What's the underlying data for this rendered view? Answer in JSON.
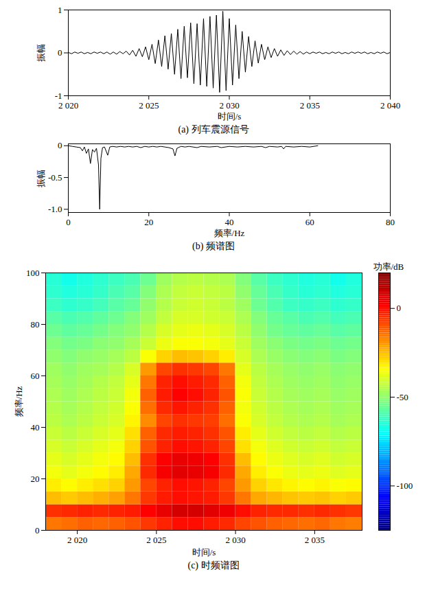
{
  "chart_data": [
    {
      "type": "line",
      "title": "(a) 列车震源信号",
      "xlabel": "时间/s",
      "ylabel": "振幅",
      "color": "#000000",
      "x": [
        2020,
        2020.2,
        2020.4,
        2020.6,
        2020.8,
        2021,
        2021.2,
        2021.4,
        2021.6,
        2021.8,
        2022,
        2022.2,
        2022.4,
        2022.6,
        2022.8,
        2023,
        2023.2,
        2023.4,
        2023.6,
        2023.8,
        2024,
        2024.2,
        2024.4,
        2024.6,
        2024.8,
        2025,
        2025.2,
        2025.4,
        2025.6,
        2025.8,
        2026,
        2026.2,
        2026.4,
        2026.6,
        2026.8,
        2027,
        2027.2,
        2027.4,
        2027.6,
        2027.8,
        2028,
        2028.2,
        2028.4,
        2028.6,
        2028.8,
        2029,
        2029.2,
        2029.4,
        2029.6,
        2029.8,
        2030,
        2030.2,
        2030.4,
        2030.6,
        2030.8,
        2031,
        2031.2,
        2031.4,
        2031.6,
        2031.8,
        2032,
        2032.2,
        2032.4,
        2032.6,
        2032.8,
        2033,
        2033.2,
        2033.4,
        2033.6,
        2033.8,
        2034,
        2034.2,
        2034.4,
        2034.6,
        2034.8,
        2035,
        2035.2,
        2035.4,
        2035.6,
        2035.8,
        2036,
        2036.2,
        2036.4,
        2036.6,
        2036.8,
        2037,
        2037.2,
        2037.4,
        2037.6,
        2037.8,
        2038,
        2038.2,
        2038.4,
        2038.6,
        2038.8,
        2039,
        2039.2,
        2039.4,
        2039.6,
        2039.8,
        2040
      ],
      "values": [
        0.01,
        -0.02,
        0.02,
        -0.01,
        0.02,
        -0.02,
        0.01,
        -0.02,
        0.02,
        -0.01,
        0.02,
        -0.02,
        0.02,
        -0.03,
        0.02,
        -0.03,
        0.03,
        -0.02,
        0.04,
        -0.05,
        0.06,
        -0.08,
        0.1,
        -0.09,
        0.14,
        -0.16,
        0.2,
        -0.25,
        0.3,
        -0.32,
        0.4,
        -0.38,
        0.45,
        -0.5,
        0.55,
        -0.6,
        0.62,
        -0.58,
        0.7,
        -0.72,
        0.68,
        -0.75,
        0.8,
        -0.78,
        0.85,
        -0.82,
        0.88,
        -0.92,
        0.97,
        -0.88,
        0.8,
        -0.75,
        0.65,
        -0.6,
        0.5,
        -0.45,
        0.38,
        -0.32,
        0.28,
        -0.24,
        0.2,
        -0.16,
        0.14,
        -0.11,
        0.1,
        -0.08,
        0.07,
        -0.06,
        0.05,
        -0.04,
        0.04,
        -0.03,
        0.03,
        -0.03,
        0.02,
        -0.02,
        0.02,
        -0.01,
        0.02,
        -0.02,
        0.01,
        -0.02,
        0.02,
        -0.01,
        0.02,
        -0.02,
        0.01,
        -0.02,
        0.02,
        -0.01,
        0.02,
        -0.01,
        0.02,
        -0.02,
        0.01,
        -0.02,
        0.02,
        -0.01,
        0.02,
        -0.02,
        0.01
      ],
      "xlim": [
        2020,
        2040
      ],
      "xticks": [
        {
          "value": 2020,
          "label": "2 020"
        },
        {
          "value": 2025,
          "label": "2 025"
        },
        {
          "value": 2030,
          "label": "2 030"
        },
        {
          "value": 2035,
          "label": "2 035"
        },
        {
          "value": 2040,
          "label": "2 040"
        }
      ],
      "ylim": [
        -1,
        1
      ],
      "yticks": [
        -1,
        0,
        1
      ]
    },
    {
      "type": "line",
      "title": "(b) 频谱图",
      "xlabel": "频率/Hz",
      "ylabel": "振幅",
      "color": "#000000",
      "x": [
        0,
        1,
        2,
        3,
        3.5,
        4,
        4.5,
        5,
        5.5,
        6,
        6.5,
        7,
        7.5,
        7.8,
        8.1,
        8.5,
        9,
        9.8,
        10.3,
        11,
        12,
        13,
        14,
        15,
        16,
        17,
        18,
        19,
        20,
        21,
        22,
        23,
        24,
        25,
        26,
        26.5,
        27,
        28,
        29,
        30,
        32,
        33,
        35,
        37,
        38,
        40,
        42,
        44,
        46,
        48,
        49,
        50,
        52,
        53,
        53.5,
        54,
        56,
        58,
        60,
        62
      ],
      "values": [
        0,
        -0.01,
        -0.02,
        -0.03,
        -0.08,
        -0.02,
        -0.12,
        -0.05,
        -0.28,
        -0.06,
        -0.1,
        -0.04,
        -0.3,
        -1.0,
        -0.2,
        -0.03,
        -0.02,
        -0.15,
        -0.02,
        -0.01,
        -0.02,
        -0.01,
        -0.02,
        -0.01,
        -0.02,
        -0.01,
        -0.03,
        -0.01,
        -0.02,
        -0.01,
        -0.02,
        -0.01,
        -0.02,
        -0.03,
        -0.05,
        -0.16,
        -0.04,
        -0.01,
        -0.02,
        -0.01,
        -0.03,
        -0.01,
        -0.02,
        -0.01,
        -0.03,
        -0.01,
        -0.02,
        -0.01,
        -0.02,
        -0.01,
        -0.03,
        -0.01,
        -0.02,
        -0.01,
        -0.05,
        -0.01,
        -0.02,
        -0.01,
        -0.02,
        0
      ],
      "xlim": [
        0,
        80
      ],
      "xticks": [
        0,
        20,
        40,
        60,
        80
      ],
      "ylim": [
        -1.05,
        0.03
      ],
      "yticks": [
        0,
        -0.5,
        {
          "value": -1,
          "label": "-1.0"
        }
      ]
    },
    {
      "type": "heatmap",
      "title": "(c) 时频谱图",
      "xlabel": "时间/s",
      "ylabel": "频率/Hz",
      "x_bins": [
        2018,
        2019,
        2020,
        2021,
        2022,
        2023,
        2024,
        2025,
        2026,
        2027,
        2028,
        2029,
        2030,
        2031,
        2032,
        2033,
        2034,
        2035,
        2036,
        2037,
        2038
      ],
      "y_bins": [
        0,
        5,
        10,
        15,
        20,
        25,
        30,
        35,
        40,
        45,
        50,
        55,
        60,
        65,
        70,
        75,
        80,
        85,
        90,
        95,
        100
      ],
      "power": [
        [
          -15,
          -14,
          -12,
          -13,
          -12,
          -10,
          -6,
          -3,
          0,
          0,
          -2,
          -4,
          -8,
          -10,
          -12,
          -13,
          -14,
          -13,
          -15,
          -16
        ],
        [
          -5,
          -4,
          -3,
          -4,
          -3,
          -2,
          2,
          5,
          8,
          8,
          6,
          4,
          0,
          -3,
          -4,
          -4,
          -5,
          -4,
          -5,
          -6
        ],
        [
          -25,
          -27,
          -25,
          -23,
          -21,
          -15,
          -6,
          -2,
          0,
          -1,
          -2,
          -6,
          -15,
          -22,
          -24,
          -26,
          -27,
          -26,
          -28,
          -27
        ],
        [
          -32,
          -34,
          -32,
          -30,
          -28,
          -20,
          -8,
          -3,
          0,
          -1,
          -3,
          -8,
          -20,
          -28,
          -31,
          -33,
          -34,
          -33,
          -35,
          -34
        ],
        [
          -36,
          -38,
          -36,
          -34,
          -32,
          -22,
          -4,
          3,
          6,
          5,
          3,
          -4,
          -22,
          -32,
          -35,
          -37,
          -38,
          -37,
          -39,
          -38
        ],
        [
          -38,
          -40,
          -38,
          -36,
          -34,
          -25,
          -5,
          2,
          5,
          4,
          2,
          -5,
          -25,
          -34,
          -37,
          -39,
          -40,
          -39,
          -41,
          -40
        ],
        [
          -40,
          -42,
          -40,
          -38,
          -36,
          -28,
          -10,
          -3,
          0,
          -1,
          -3,
          -8,
          -30,
          -36,
          -39,
          -41,
          -42,
          -41,
          -43,
          -42
        ],
        [
          -42,
          -44,
          -42,
          -40,
          -38,
          -30,
          -12,
          -4,
          -2,
          -3,
          -5,
          -10,
          -32,
          -38,
          -41,
          -43,
          -44,
          -43,
          -45,
          -44
        ],
        [
          -44,
          -46,
          -44,
          -42,
          -40,
          -33,
          -18,
          -8,
          -5,
          -6,
          -7,
          -14,
          -35,
          -40,
          -43,
          -45,
          -46,
          -45,
          -47,
          -46
        ],
        [
          -45,
          -47,
          -45,
          -43,
          -41,
          -35,
          -14,
          -4,
          -1,
          -3,
          -5,
          -12,
          -36,
          -41,
          -44,
          -46,
          -47,
          -46,
          -48,
          -47
        ],
        [
          -46,
          -48,
          -46,
          -44,
          -42,
          -36,
          -12,
          -2,
          2,
          0,
          -3,
          -10,
          -35,
          -42,
          -45,
          -47,
          -48,
          -47,
          -49,
          -48
        ],
        [
          -47,
          -49,
          -47,
          -45,
          -43,
          -38,
          -15,
          -3,
          0,
          -2,
          -4,
          -12,
          -36,
          -43,
          -46,
          -48,
          -49,
          -48,
          -50,
          -49
        ],
        [
          -48,
          -50,
          -48,
          -47,
          -45,
          -40,
          -20,
          -8,
          -5,
          -6,
          -8,
          -15,
          -38,
          -44,
          -47,
          -49,
          -50,
          -49,
          -51,
          -50
        ],
        [
          -50,
          -52,
          -50,
          -49,
          -47,
          -44,
          -35,
          -28,
          -25,
          -26,
          -28,
          -32,
          -40,
          -46,
          -49,
          -51,
          -52,
          -51,
          -53,
          -52
        ],
        [
          -52,
          -54,
          -53,
          -51,
          -50,
          -47,
          -42,
          -37,
          -35,
          -35,
          -36,
          -38,
          -42,
          -48,
          -51,
          -53,
          -54,
          -53,
          -55,
          -54
        ],
        [
          -55,
          -57,
          -56,
          -54,
          -52,
          -50,
          -45,
          -40,
          -38,
          -37,
          -38,
          -40,
          -44,
          -50,
          -54,
          -56,
          -57,
          -56,
          -58,
          -57
        ],
        [
          -58,
          -60,
          -59,
          -57,
          -55,
          -52,
          -48,
          -43,
          -40,
          -40,
          -41,
          -42,
          -46,
          -52,
          -56,
          -58,
          -60,
          -59,
          -61,
          -60
        ],
        [
          -62,
          -64,
          -63,
          -61,
          -58,
          -56,
          -50,
          -45,
          -42,
          -41,
          -42,
          -44,
          -48,
          -55,
          -59,
          -62,
          -63,
          -62,
          -64,
          -63
        ],
        [
          -64,
          -66,
          -65,
          -63,
          -60,
          -58,
          -52,
          -46,
          -43,
          -42,
          -43,
          -44,
          -50,
          -56,
          -60,
          -63,
          -65,
          -64,
          -66,
          -65
        ],
        [
          -65,
          -68,
          -66,
          -64,
          -62,
          -60,
          -55,
          -48,
          -45,
          -44,
          -45,
          -46,
          -52,
          -58,
          -62,
          -64,
          -66,
          -65,
          -68,
          -66
        ]
      ],
      "xlim": [
        2018,
        2038
      ],
      "xticks": [
        {
          "value": 2020,
          "label": "2 020"
        },
        {
          "value": 2025,
          "label": "2 025"
        },
        {
          "value": 2030,
          "label": "2 030"
        },
        {
          "value": 2035,
          "label": "2 035"
        }
      ],
      "ylim": [
        0,
        100
      ],
      "yticks": [
        0,
        20,
        40,
        60,
        80,
        100
      ],
      "colorbar_label": "功率/dB",
      "colorbar_lim": [
        -125,
        20
      ],
      "colorbar_ticks": [
        0,
        -50,
        -100
      ]
    }
  ]
}
